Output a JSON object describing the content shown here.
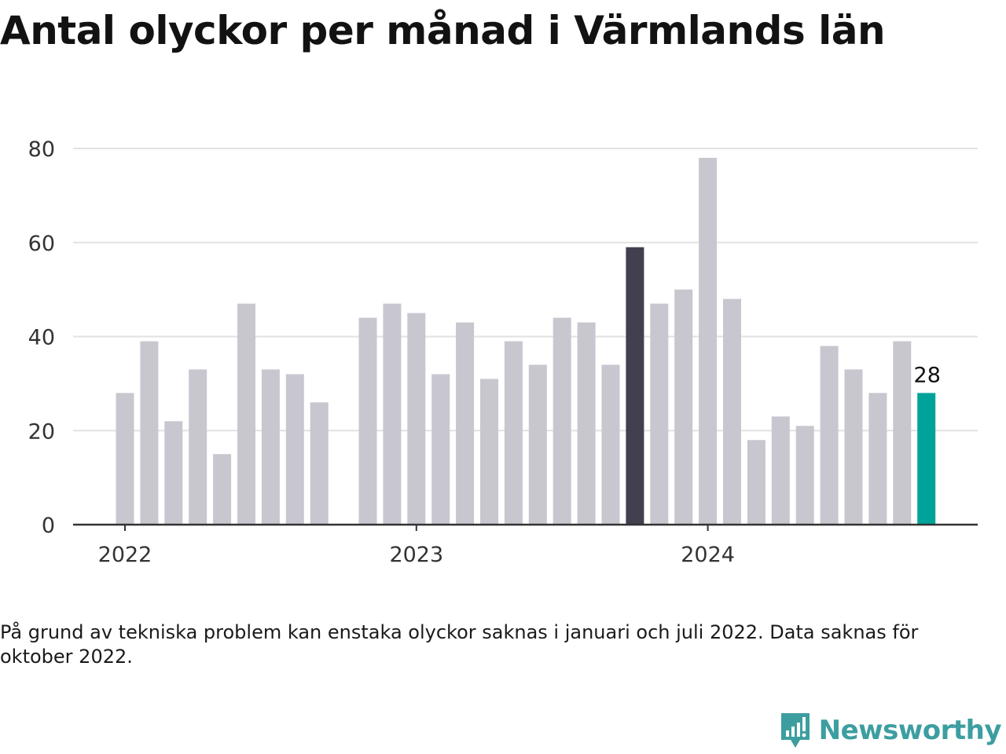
{
  "title": "Antal olyckor per månad i Värmlands län",
  "note": "På grund av tekniska problem kan enstaka olyckor saknas i januari och juli 2022. Data saknas för oktober 2022.",
  "brand": {
    "name": "Newsworthy",
    "icon": "newsworthy-logo-icon",
    "color": "#3d9ea0"
  },
  "colors": {
    "default_bar": "#c8c7cf",
    "highlight_bar": "#42404f",
    "latest_bar": "#00a399",
    "grid": "#e2e2e2",
    "axis": "#333333"
  },
  "chart_data": {
    "type": "bar",
    "x": [
      "2022-01",
      "2022-02",
      "2022-03",
      "2022-04",
      "2022-05",
      "2022-06",
      "2022-07",
      "2022-08",
      "2022-09",
      "2022-10",
      "2022-11",
      "2022-12",
      "2023-01",
      "2023-02",
      "2023-03",
      "2023-04",
      "2023-05",
      "2023-06",
      "2023-07",
      "2023-08",
      "2023-09",
      "2023-10",
      "2023-11",
      "2023-12",
      "2024-01",
      "2024-02",
      "2024-03",
      "2024-04",
      "2024-05",
      "2024-06",
      "2024-07",
      "2024-08",
      "2024-09",
      "2024-10"
    ],
    "values": [
      28,
      39,
      22,
      33,
      15,
      47,
      33,
      32,
      26,
      null,
      44,
      47,
      45,
      32,
      43,
      31,
      39,
      34,
      44,
      43,
      34,
      59,
      47,
      50,
      78,
      48,
      18,
      23,
      21,
      38,
      33,
      28,
      39,
      28
    ],
    "highlight_index": 21,
    "latest_index": 33,
    "latest_label": "28",
    "yticks": [
      0,
      20,
      40,
      60,
      80
    ],
    "ylim": [
      0,
      80
    ],
    "xticks": [
      {
        "label": "2022",
        "index": 0
      },
      {
        "label": "2023",
        "index": 12
      },
      {
        "label": "2024",
        "index": 24
      }
    ],
    "grid": true,
    "xlabel": "",
    "ylabel": ""
  }
}
